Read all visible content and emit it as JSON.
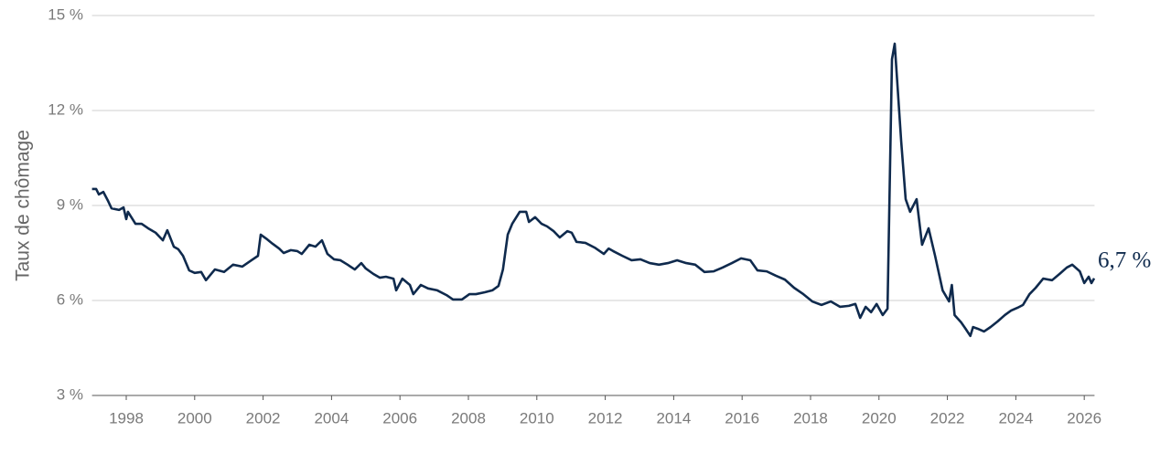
{
  "chart_data": {
    "type": "line",
    "ylabel": "Taux de chômage",
    "annotation": "6,7 %",
    "color": "#0f2a4d",
    "grid": true,
    "xlim": [
      1997,
      2026.3
    ],
    "xticks": [
      1998,
      2000,
      2002,
      2004,
      2006,
      2008,
      2010,
      2012,
      2014,
      2016,
      2018,
      2020,
      2022,
      2024,
      2026
    ],
    "ylim": [
      3,
      15
    ],
    "yticks": [
      {
        "value": 3,
        "label": "3 %"
      },
      {
        "value": 6,
        "label": "6 %"
      },
      {
        "value": 9,
        "label": "9 %"
      },
      {
        "value": 12,
        "label": "12 %"
      },
      {
        "value": 15,
        "label": "15 %"
      }
    ],
    "x": [
      1997.0,
      1997.12,
      1997.2,
      1997.33,
      1997.47,
      1997.57,
      1997.79,
      1997.92,
      1998.0,
      1998.05,
      1998.27,
      1998.45,
      1998.64,
      1998.86,
      1999.07,
      1999.2,
      1999.39,
      1999.52,
      1999.66,
      1999.84,
      2000.0,
      2000.19,
      2000.33,
      2000.59,
      2000.86,
      2001.12,
      2001.39,
      2001.66,
      2001.85,
      2001.93,
      2002.12,
      2002.28,
      2002.47,
      2002.6,
      2002.81,
      2003.0,
      2003.13,
      2003.35,
      2003.53,
      2003.72,
      2003.88,
      2004.07,
      2004.26,
      2004.47,
      2004.68,
      2004.87,
      2005.0,
      2005.22,
      2005.41,
      2005.59,
      2005.81,
      2005.89,
      2006.07,
      2006.29,
      2006.39,
      2006.61,
      2006.82,
      2007.09,
      2007.36,
      2007.55,
      2007.81,
      2008.03,
      2008.22,
      2008.48,
      2008.7,
      2008.88,
      2009.01,
      2009.15,
      2009.28,
      2009.5,
      2009.69,
      2009.77,
      2009.95,
      2010.14,
      2010.3,
      2010.49,
      2010.67,
      2010.89,
      2011.02,
      2011.16,
      2011.42,
      2011.69,
      2011.96,
      2012.1,
      2012.23,
      2012.5,
      2012.77,
      2013.03,
      2013.3,
      2013.57,
      2013.83,
      2014.1,
      2014.37,
      2014.63,
      2014.9,
      2015.17,
      2015.43,
      2015.7,
      2015.97,
      2016.24,
      2016.45,
      2016.72,
      2016.99,
      2017.25,
      2017.52,
      2017.79,
      2018.05,
      2018.32,
      2018.59,
      2018.86,
      2019.12,
      2019.31,
      2019.45,
      2019.61,
      2019.77,
      2019.93,
      2020.11,
      2020.25,
      2020.38,
      2020.46,
      2020.65,
      2020.78,
      2020.91,
      2021.1,
      2021.26,
      2021.45,
      2021.64,
      2021.86,
      2022.05,
      2022.13,
      2022.21,
      2022.4,
      2022.53,
      2022.67,
      2022.75,
      2022.88,
      2023.07,
      2023.26,
      2023.47,
      2023.68,
      2023.86,
      2024.05,
      2024.21,
      2024.4,
      2024.58,
      2024.8,
      2025.06,
      2025.28,
      2025.49,
      2025.65,
      2025.87,
      2026.0,
      2026.13,
      2026.21,
      2026.29
    ],
    "values": [
      9.52,
      9.52,
      9.35,
      9.43,
      9.14,
      8.91,
      8.86,
      8.94,
      8.57,
      8.8,
      8.42,
      8.42,
      8.28,
      8.14,
      7.9,
      8.22,
      7.7,
      7.62,
      7.41,
      6.95,
      6.87,
      6.9,
      6.64,
      6.98,
      6.9,
      7.13,
      7.07,
      7.27,
      7.41,
      8.08,
      7.93,
      7.79,
      7.64,
      7.5,
      7.59,
      7.56,
      7.47,
      7.76,
      7.7,
      7.9,
      7.47,
      7.3,
      7.27,
      7.13,
      6.98,
      7.18,
      7.01,
      6.84,
      6.72,
      6.75,
      6.69,
      6.32,
      6.69,
      6.49,
      6.2,
      6.49,
      6.38,
      6.32,
      6.17,
      6.03,
      6.03,
      6.2,
      6.2,
      6.26,
      6.32,
      6.46,
      6.98,
      8.08,
      8.42,
      8.8,
      8.8,
      8.48,
      8.63,
      8.42,
      8.34,
      8.19,
      7.99,
      8.19,
      8.14,
      7.85,
      7.82,
      7.67,
      7.47,
      7.64,
      7.56,
      7.41,
      7.27,
      7.3,
      7.18,
      7.13,
      7.18,
      7.27,
      7.18,
      7.13,
      6.9,
      6.92,
      7.04,
      7.18,
      7.33,
      7.27,
      6.95,
      6.92,
      6.78,
      6.66,
      6.4,
      6.2,
      5.97,
      5.86,
      5.97,
      5.8,
      5.83,
      5.89,
      5.45,
      5.8,
      5.63,
      5.89,
      5.54,
      5.74,
      13.62,
      14.11,
      11.02,
      9.2,
      8.8,
      9.2,
      7.76,
      8.28,
      7.41,
      6.32,
      5.97,
      6.49,
      5.54,
      5.31,
      5.11,
      4.88,
      5.16,
      5.11,
      5.02,
      5.16,
      5.34,
      5.54,
      5.68,
      5.77,
      5.86,
      6.2,
      6.4,
      6.69,
      6.64,
      6.84,
      7.04,
      7.13,
      6.92,
      6.55,
      6.75,
      6.55,
      6.7
    ]
  }
}
